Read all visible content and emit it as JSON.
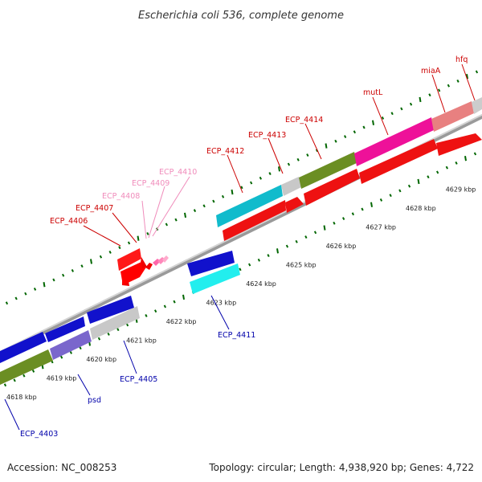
{
  "title": "Escherichia coli 536, complete genome",
  "footer": {
    "accession": "Accession: NC_008253",
    "topology": "Topology: circular; Length: 4,938,920 bp; Genes: 4,722"
  },
  "colors": {
    "forward_label": "#cc0000",
    "forward_label_faded": "#f08cbb",
    "reverse_label": "#0000aa",
    "backbone": "#999999",
    "tick": "#006600"
  },
  "tick_labels": [
    "4618 kbp",
    "4619 kbp",
    "4620 kbp",
    "4621 kbp",
    "4622 kbp",
    "4623 kbp",
    "4624 kbp",
    "4625 kbp",
    "4626 kbp",
    "4627 kbp",
    "4628 kbp",
    "4629 kbp"
  ],
  "genes": {
    "forward": [
      {
        "label": "ECP_4406",
        "tone": "strong"
      },
      {
        "label": "ECP_4407",
        "tone": "strong"
      },
      {
        "label": "ECP_4408",
        "tone": "faded"
      },
      {
        "label": "ECP_4409",
        "tone": "faded"
      },
      {
        "label": "ECP_4410",
        "tone": "faded"
      },
      {
        "label": "ECP_4412",
        "tone": "strong"
      },
      {
        "label": "ECP_4413",
        "tone": "strong"
      },
      {
        "label": "ECP_4414",
        "tone": "strong"
      },
      {
        "label": "mutL",
        "tone": "strong"
      },
      {
        "label": "miaA",
        "tone": "strong"
      },
      {
        "label": "hfq",
        "tone": "strong"
      }
    ],
    "reverse": [
      {
        "label": "ECP_4403"
      },
      {
        "label": "psd"
      },
      {
        "label": "ECP_4405"
      },
      {
        "label": "ECP_4411"
      }
    ]
  }
}
